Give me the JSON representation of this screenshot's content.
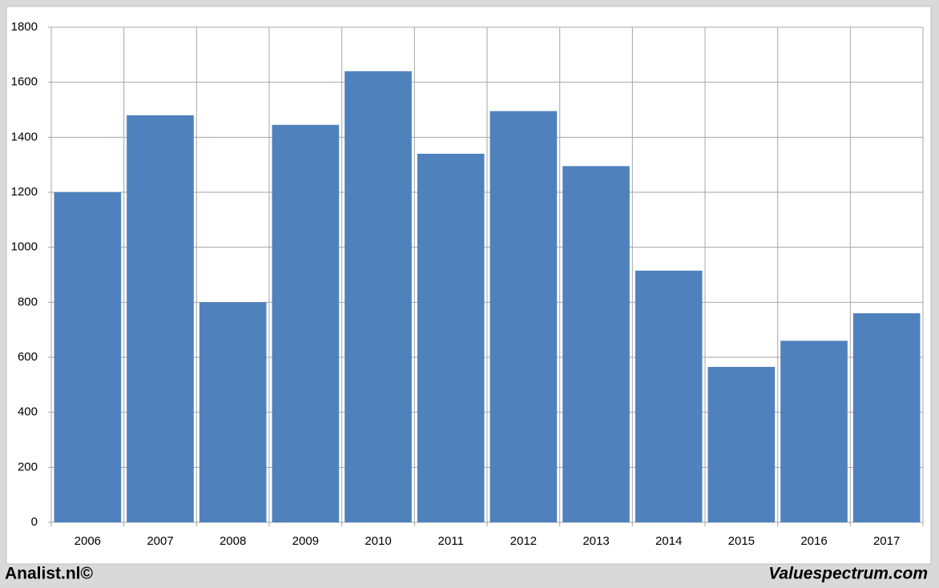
{
  "chart_data": {
    "type": "bar",
    "categories": [
      "2006",
      "2007",
      "2008",
      "2009",
      "2010",
      "2011",
      "2012",
      "2013",
      "2014",
      "2015",
      "2016",
      "2017"
    ],
    "values": [
      1200,
      1480,
      800,
      1445,
      1640,
      1340,
      1495,
      1295,
      915,
      565,
      660,
      760
    ],
    "color": "#4f81bd",
    "ylim": [
      0,
      1800
    ],
    "yticks": [
      0,
      200,
      400,
      600,
      800,
      1000,
      1200,
      1400,
      1600,
      1800
    ],
    "grid": true
  },
  "footer": {
    "left": "Analist.nl©",
    "right": "Valuespectrum.com"
  }
}
